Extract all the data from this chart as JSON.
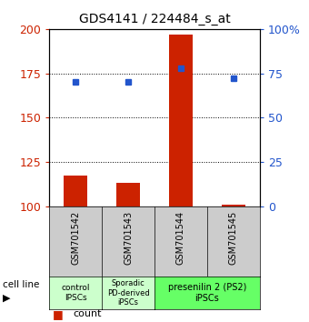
{
  "title": "GDS4141 / 224484_s_at",
  "samples": [
    "GSM701542",
    "GSM701543",
    "GSM701544",
    "GSM701545"
  ],
  "counts": [
    117,
    113,
    197,
    101
  ],
  "percentiles": [
    70,
    70,
    78,
    72
  ],
  "ylim_left": [
    100,
    200
  ],
  "ylim_right": [
    0,
    100
  ],
  "yticks_left": [
    100,
    125,
    150,
    175,
    200
  ],
  "yticks_right": [
    0,
    25,
    50,
    75,
    100
  ],
  "ytick_labels_right": [
    "0",
    "25",
    "50",
    "75",
    "100%"
  ],
  "bar_color": "#cc2200",
  "dot_color": "#2255cc",
  "bar_width": 0.45,
  "group_defs": [
    {
      "span": [
        0,
        0
      ],
      "label": "control\nIPSCs",
      "color": "#ccffcc",
      "fontsize": 6.5
    },
    {
      "span": [
        1,
        1
      ],
      "label": "Sporadic\nPD-derived\niPSCs",
      "color": "#ccffcc",
      "fontsize": 6.0
    },
    {
      "span": [
        2,
        3
      ],
      "label": "presenilin 2 (PS2)\niPSCs",
      "color": "#66ff66",
      "fontsize": 7.0
    }
  ],
  "sample_box_color": "#cccccc",
  "bg_color": "#ffffff",
  "plot_bg": "#ffffff",
  "dotted_gridlines": [
    125,
    150,
    175
  ],
  "left_axis_color": "#cc2200",
  "right_axis_color": "#2255cc"
}
